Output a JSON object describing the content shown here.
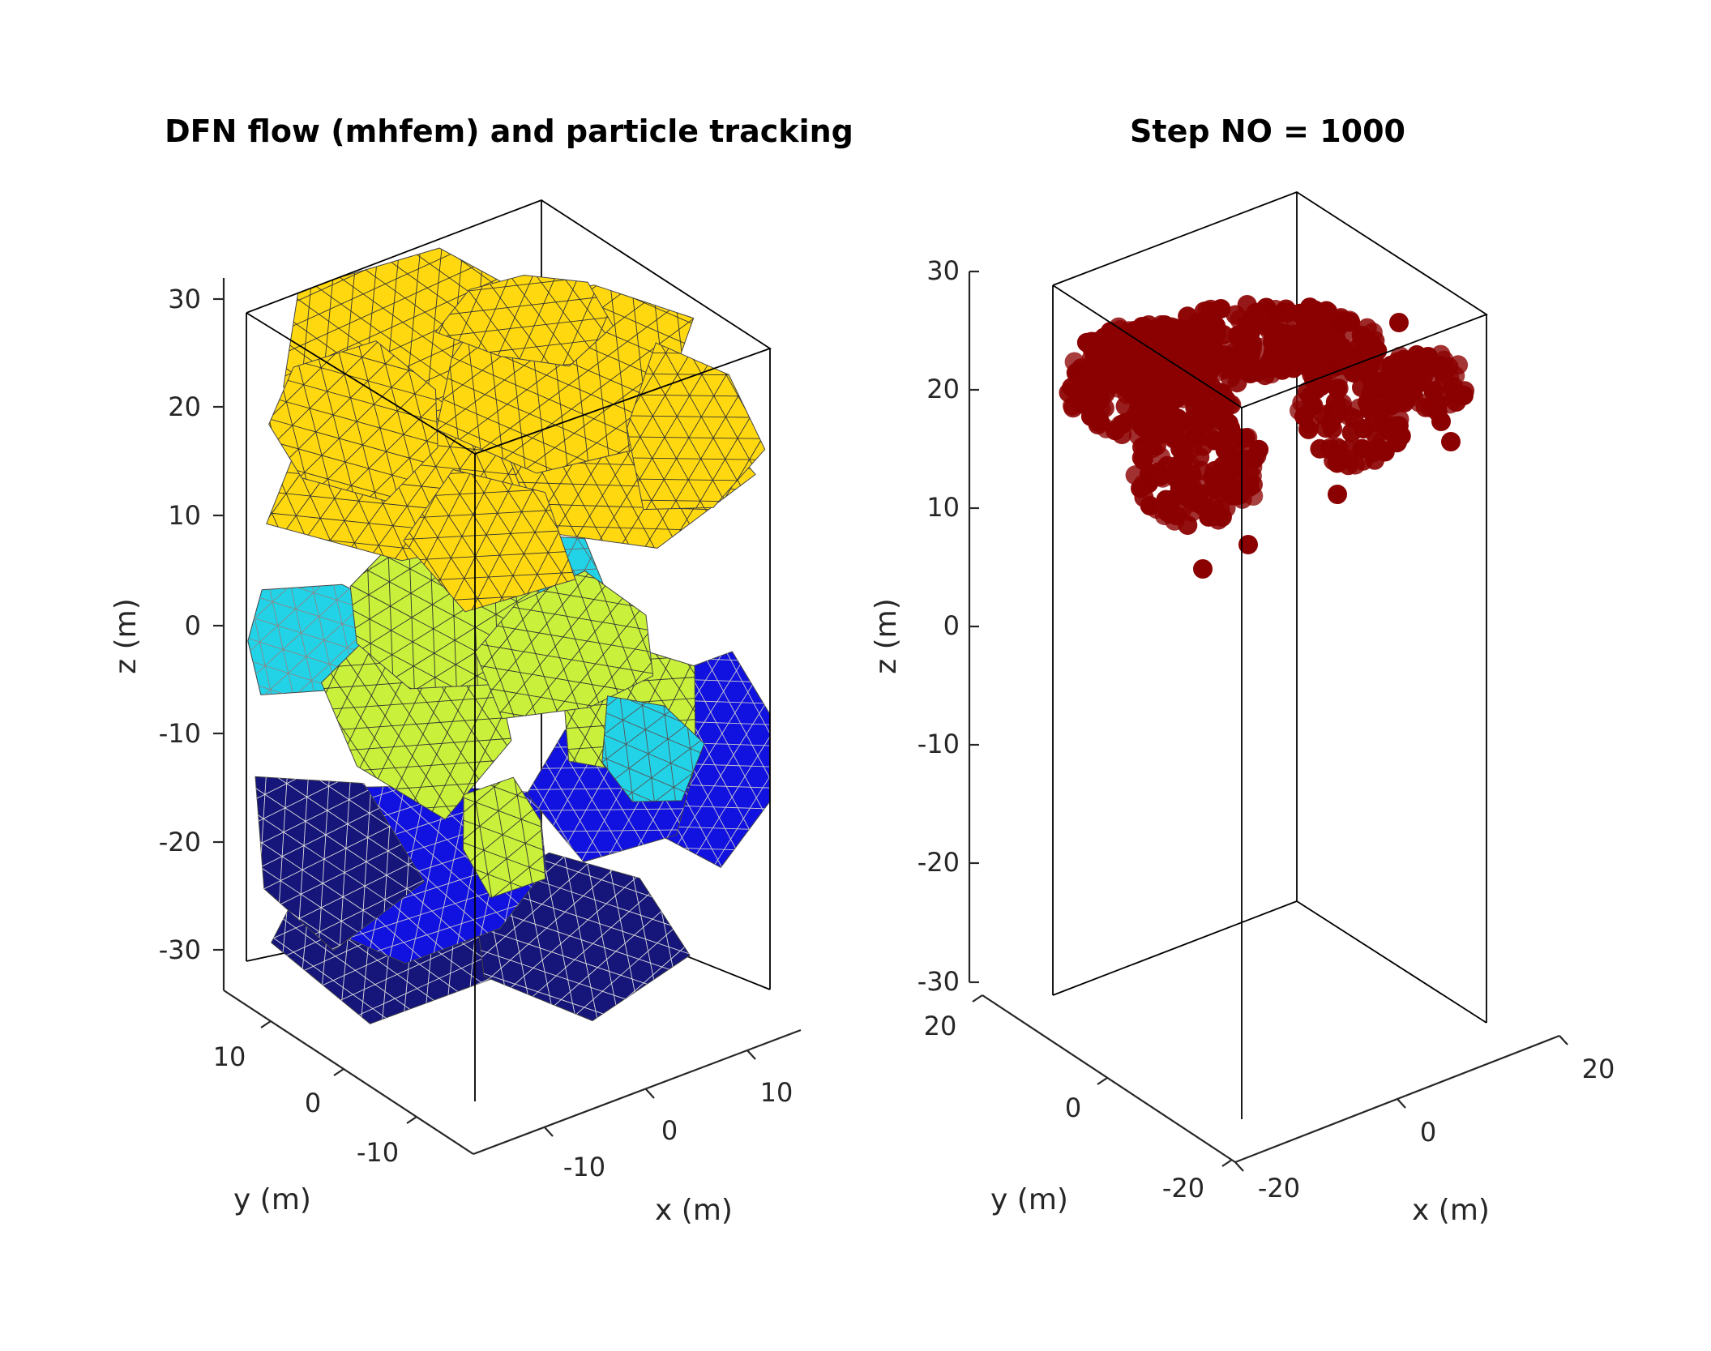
{
  "chart_data": [
    {
      "type": "3d-mesh",
      "title": "DFN flow (mhfem) and particle tracking",
      "xlabel": "x (m)",
      "ylabel": "y (m)",
      "zlabel": "z (m)",
      "xticks": [
        "-10",
        "0",
        "10"
      ],
      "yticks": [
        "10",
        "0",
        "-10"
      ],
      "zticks": [
        "30",
        "20",
        "10",
        "0",
        "-10",
        "-20",
        "-30"
      ],
      "xlim": [
        -15,
        15
      ],
      "ylim": [
        -15,
        15
      ],
      "zlim": [
        -35,
        35
      ],
      "grid": false,
      "colormap": "parula (pressure head: yellow high at top, blue low at bottom)",
      "colors": {
        "high": "#FFD80F",
        "mid": "#C9F03A",
        "cyan": "#22D3E8",
        "low": "#1212E0",
        "lowest": "#15157A"
      }
    },
    {
      "type": "scatter3d",
      "title": "Step NO = 1000",
      "xlabel": "x (m)",
      "ylabel": "y (m)",
      "zlabel": "z (m)",
      "xticks": [
        "-20",
        "0",
        "20"
      ],
      "yticks": [
        "20",
        "0",
        "-20"
      ],
      "zticks": [
        "30",
        "20",
        "10",
        "0",
        "-10",
        "-20",
        "-30"
      ],
      "xlim": [
        -25,
        25
      ],
      "ylim": [
        -25,
        25
      ],
      "zlim": [
        -32,
        32
      ],
      "grid": false,
      "marker_color": "#8B0000",
      "particle_cluster": {
        "z_range_approx": [
          5,
          26
        ],
        "count_approx": 1000
      }
    }
  ]
}
